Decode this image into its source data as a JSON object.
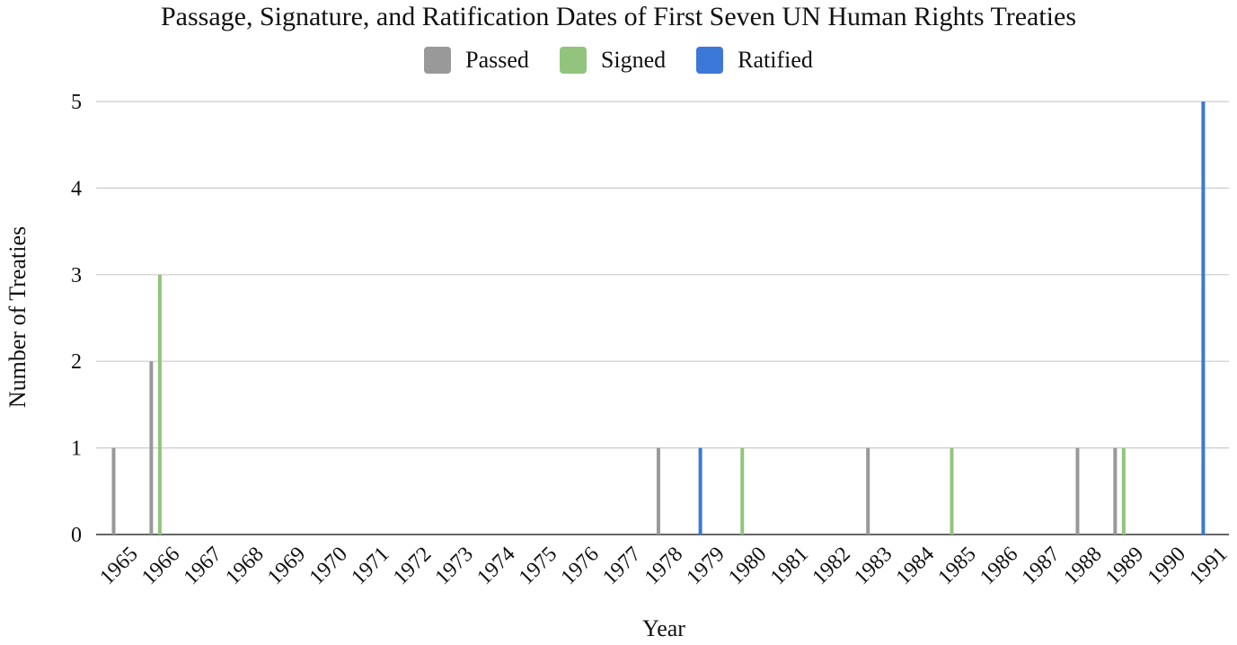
{
  "chart_data": {
    "type": "bar",
    "title": "Passage, Signature, and Ratification Dates of First Seven UN Human Rights Treaties",
    "xlabel": "Year",
    "ylabel": "Number of Treaties",
    "ylim": [
      0,
      5
    ],
    "yticks": [
      "0",
      "1",
      "2",
      "3",
      "4",
      "5"
    ],
    "grid": true,
    "legend_position": "top",
    "categories": [
      "1965",
      "1966",
      "1967",
      "1968",
      "1969",
      "1970",
      "1971",
      "1972",
      "1973",
      "1974",
      "1975",
      "1976",
      "1977",
      "1978",
      "1979",
      "1980",
      "1981",
      "1982",
      "1983",
      "1984",
      "1985",
      "1986",
      "1987",
      "1988",
      "1989",
      "1990",
      "1991"
    ],
    "series": [
      {
        "name": "Passed",
        "color": "#999999",
        "values": [
          1,
          2,
          0,
          0,
          0,
          0,
          0,
          0,
          0,
          0,
          0,
          0,
          0,
          1,
          0,
          0,
          0,
          0,
          1,
          0,
          0,
          0,
          0,
          1,
          1,
          0,
          0
        ]
      },
      {
        "name": "Signed",
        "color": "#93c47d",
        "values": [
          0,
          3,
          0,
          0,
          0,
          0,
          0,
          0,
          0,
          0,
          0,
          0,
          0,
          0,
          0,
          1,
          0,
          0,
          0,
          0,
          1,
          0,
          0,
          0,
          1,
          0,
          0
        ]
      },
      {
        "name": "Ratified",
        "color": "#3c78d8",
        "values": [
          0,
          0,
          0,
          0,
          0,
          0,
          0,
          0,
          0,
          0,
          0,
          0,
          0,
          0,
          1,
          0,
          0,
          0,
          0,
          0,
          0,
          0,
          0,
          0,
          0,
          0,
          5
        ]
      }
    ]
  }
}
